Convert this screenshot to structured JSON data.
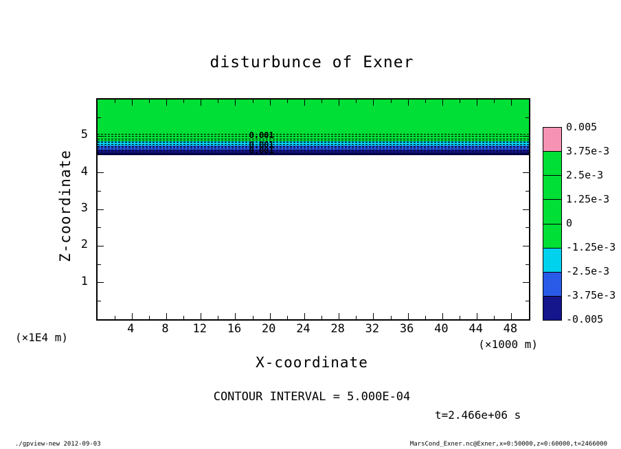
{
  "chart_data": {
    "type": "heatmap",
    "subtype": "filled-contour",
    "title": "disturbunce of Exner",
    "xlabel": "X-coordinate",
    "ylabel": "Z-coordinate",
    "x_unit_label": "(×1000 m)",
    "y_unit_label": "(×1E4 m)",
    "xlim": [
      0,
      50
    ],
    "ylim": [
      0,
      6
    ],
    "x_major_ticks": [
      4,
      8,
      12,
      16,
      20,
      24,
      28,
      32,
      36,
      40,
      44,
      48
    ],
    "x_minor_step": 2,
    "y_major_ticks": [
      1,
      2,
      3,
      4,
      5
    ],
    "y_minor_step": 0.5,
    "contour_interval_text": "CONTOUR INTERVAL = 5.000E-04",
    "time_text": "t=2.466e+06 s",
    "fill_bands": [
      {
        "z_top": 6.0,
        "z_bottom": 4.86,
        "color": "#00df35",
        "value_range": "-1.25e-3 to 0"
      },
      {
        "z_top": 4.86,
        "z_bottom": 4.74,
        "color": "#00d2ee",
        "value_range": "-2.5e-3 to -1.25e-3"
      },
      {
        "z_top": 4.74,
        "z_bottom": 4.64,
        "color": "#2a5ae8",
        "value_range": "-3.75e-3 to -2.5e-3"
      },
      {
        "z_top": 4.64,
        "z_bottom": 4.52,
        "color": "#15158c",
        "value_range": "-0.005 to -3.75e-3"
      }
    ],
    "contour_lines": {
      "dashed_z": [
        5.04,
        4.98,
        4.92,
        4.86,
        4.81,
        4.76,
        4.71,
        4.66,
        4.61,
        4.56
      ],
      "solid_z": [
        4.52
      ]
    },
    "contour_labels": [
      {
        "text": "0.001",
        "x": 19,
        "z": 5.02
      },
      {
        "text": "0.001",
        "x": 19,
        "z": 4.76
      },
      {
        "text": "0.001",
        "x": 19,
        "z": 4.62
      }
    ],
    "colorbar": {
      "labels": [
        "0.005",
        "3.75e-3",
        "2.5e-3",
        "1.25e-3",
        "0",
        "-1.25e-3",
        "-2.5e-3",
        "-3.75e-3",
        "-0.005"
      ],
      "cell_colors_top_to_bottom": [
        "#f693b4",
        "#00df35",
        "#00df35",
        "#00df35",
        "#00df35",
        "#00d2ee",
        "#2a5ae8",
        "#15158c"
      ]
    }
  },
  "footer": {
    "left": "./gpview-new  2012-09-03",
    "right": "MarsCond_Exner.nc@Exner,x=0:50000,z=0:60000,t=2466000"
  }
}
